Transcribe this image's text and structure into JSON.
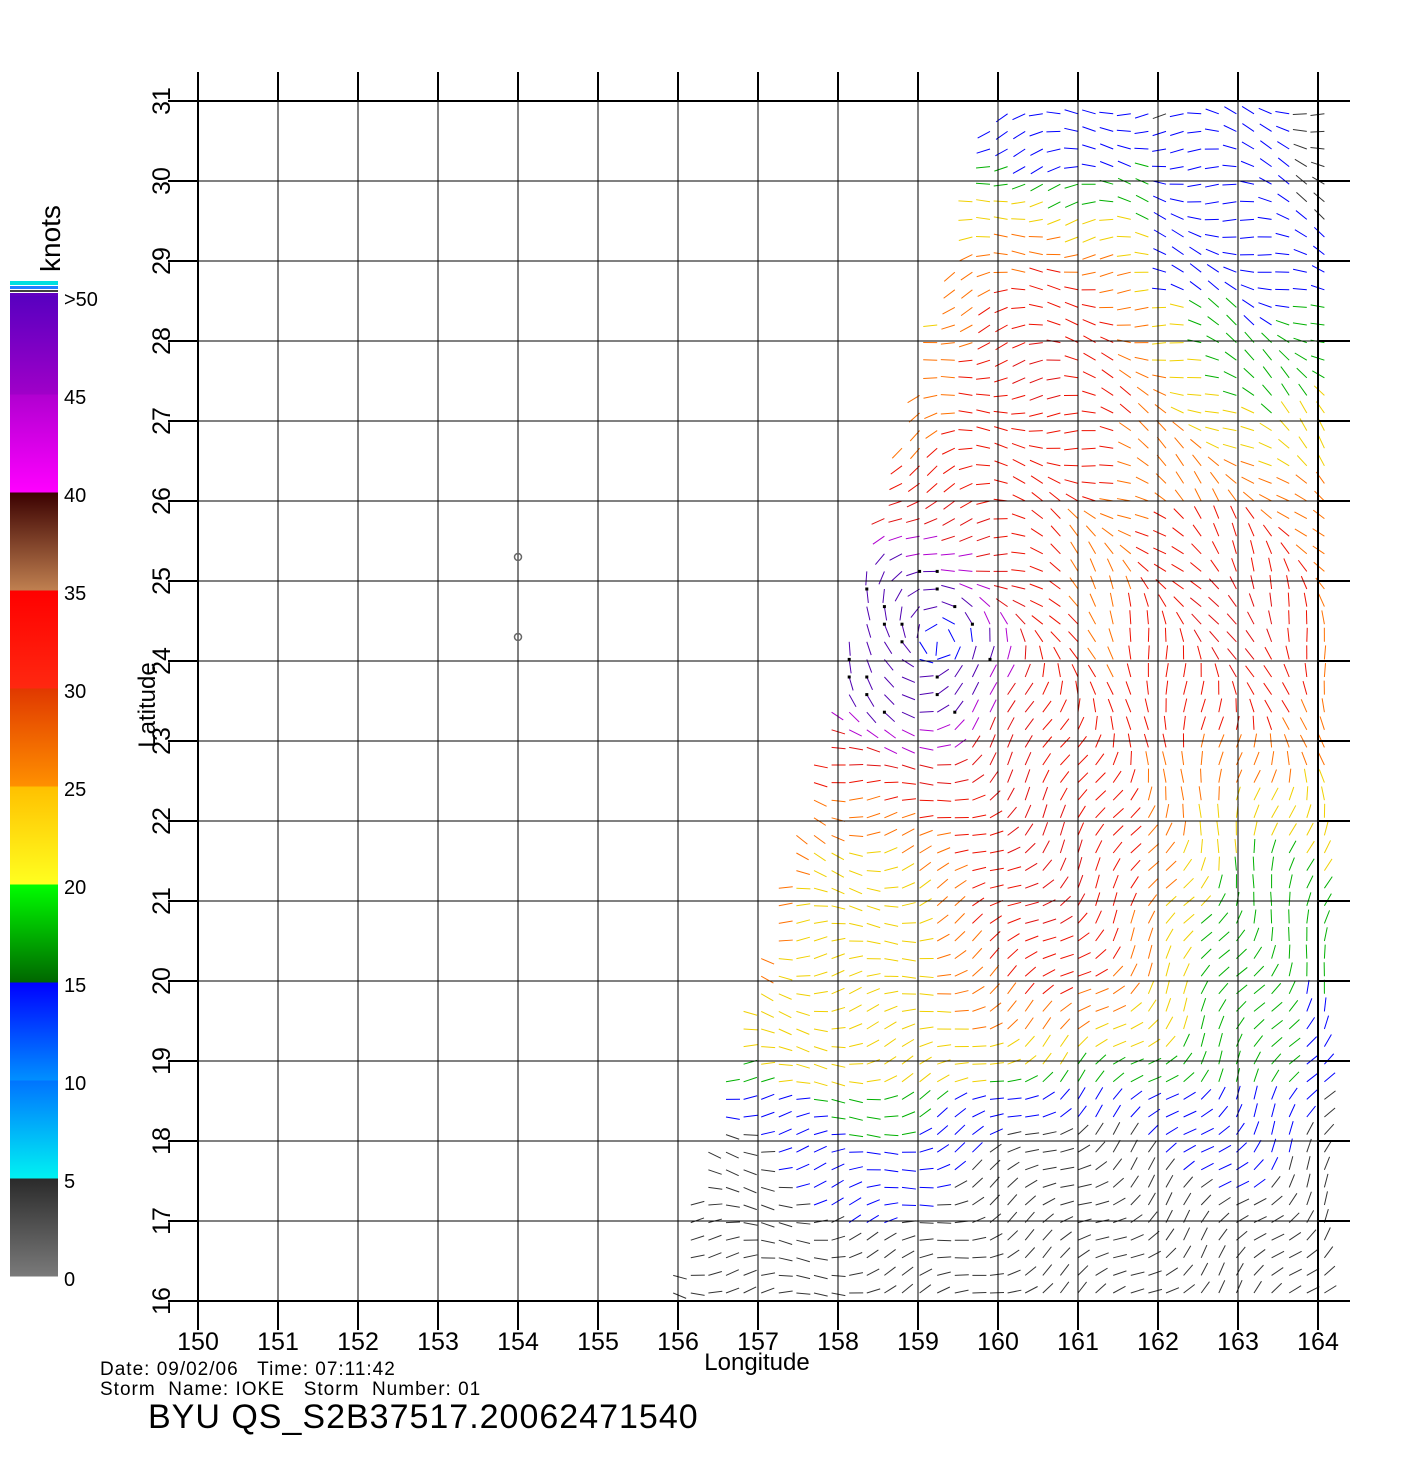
{
  "map": {
    "x_axis": {
      "label": "Longitude",
      "min": 150,
      "max": 164,
      "ticks": [
        "150",
        "151",
        "152",
        "153",
        "154",
        "155",
        "156",
        "157",
        "158",
        "159",
        "160",
        "161",
        "162",
        "163",
        "164"
      ]
    },
    "y_axis": {
      "label": "Latitude",
      "min": 16,
      "max": 31,
      "ticks": [
        "16",
        "17",
        "18",
        "19",
        "20",
        "21",
        "22",
        "23",
        "24",
        "25",
        "26",
        "27",
        "28",
        "29",
        "30",
        "31"
      ]
    },
    "grid": true,
    "swath_corners_lonlat": [
      [
        160.0,
        31.0
      ],
      [
        164.1,
        31.0
      ],
      [
        164.1,
        16.0
      ],
      [
        155.8,
        16.0
      ]
    ],
    "storm_center_marks": [
      {
        "lon": 154.0,
        "lat": 25.3
      },
      {
        "lon": 154.0,
        "lat": 24.3
      }
    ],
    "circulation_center": {
      "lon": 159.3,
      "lat": 24.2
    }
  },
  "colorbar": {
    "title": "knots",
    "labels": [
      "0",
      "5",
      "10",
      "15",
      "20",
      "25",
      "30",
      "35",
      "40",
      "45",
      ">50"
    ],
    "bands": [
      {
        "from": 0,
        "to": 5,
        "colors": [
          "#7a7a7a",
          "#2a2a2a"
        ]
      },
      {
        "from": 5,
        "to": 10,
        "colors": [
          "#00f2f2",
          "#0073ff"
        ]
      },
      {
        "from": 10,
        "to": 15,
        "colors": [
          "#0090ff",
          "#0000ff"
        ]
      },
      {
        "from": 15,
        "to": 20,
        "colors": [
          "#006600",
          "#00ff00"
        ]
      },
      {
        "from": 20,
        "to": 25,
        "colors": [
          "#ffff20",
          "#ffc000"
        ]
      },
      {
        "from": 25,
        "to": 30,
        "colors": [
          "#ff9000",
          "#e03800"
        ]
      },
      {
        "from": 30,
        "to": 35,
        "colors": [
          "#ff2810",
          "#ff0000"
        ]
      },
      {
        "from": 35,
        "to": 40,
        "colors": [
          "#c08050",
          "#3a0000"
        ]
      },
      {
        "from": 40,
        "to": 45,
        "colors": [
          "#ff00ff",
          "#b000d0"
        ]
      },
      {
        "from": 45,
        "to": 50,
        "colors": [
          "#a000c8",
          "#5800c0"
        ]
      }
    ]
  },
  "footer": {
    "date_label": "Date:",
    "date": "09/02/06",
    "time_label": "Time:",
    "time": "07:11:42",
    "storm_name_label": "Storm  Name:",
    "storm_name": "IOKE",
    "storm_number_label": "Storm  Number:",
    "storm_number": "01",
    "product": "BYU  QS_S2B37517.20062471540"
  }
}
